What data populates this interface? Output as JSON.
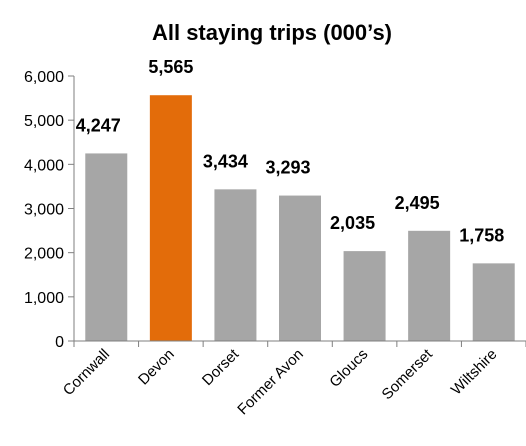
{
  "chart_data": {
    "type": "bar",
    "title": "All staying trips (000’s)",
    "categories": [
      "Cornwall",
      "Devon",
      "Dorset",
      "Former Avon",
      "Gloucs",
      "Somerset",
      "Wiltshire"
    ],
    "values": [
      4247,
      5565,
      3434,
      3293,
      2035,
      2495,
      1758
    ],
    "data_labels": [
      "4,247",
      "5,565",
      "3,434",
      "3,293",
      "2,035",
      "2,495",
      "1,758"
    ],
    "y_ticks": [
      0,
      1000,
      2000,
      3000,
      4000,
      5000,
      6000
    ],
    "y_tick_labels": [
      "0",
      "1,000",
      "2,000",
      "3,000",
      "4,000",
      "5,000",
      "6,000"
    ],
    "ylim": [
      0,
      6000
    ],
    "grid": false,
    "legend": "none",
    "highlight_category": "Devon",
    "colors": {
      "bar": "#a6a6a6",
      "highlight": "#e36c0a",
      "axis": "#7f7f7f"
    }
  }
}
